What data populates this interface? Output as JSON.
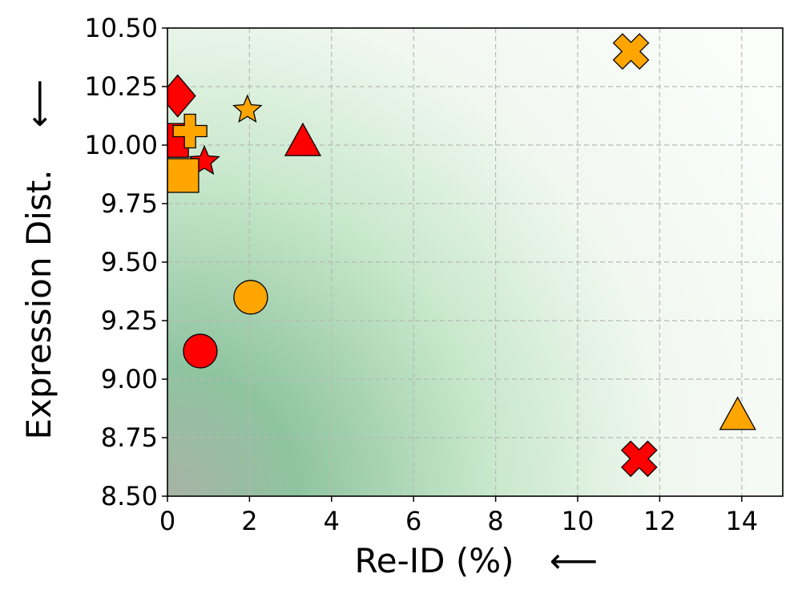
{
  "chart_data": {
    "type": "scatter",
    "xlabel": "Re-ID (%)",
    "ylabel": "Expression Dist.",
    "xlabel_arrow": "⟵",
    "ylabel_arrow": "⟵",
    "xlim": [
      0,
      15
    ],
    "ylim": [
      8.5,
      10.5
    ],
    "xticks": [
      0,
      2,
      4,
      6,
      8,
      10,
      12,
      14
    ],
    "xtick_labels": [
      "0",
      "2",
      "4",
      "6",
      "8",
      "10",
      "12",
      "14"
    ],
    "yticks": [
      8.5,
      8.75,
      9.0,
      9.25,
      9.5,
      9.75,
      10.0,
      10.25,
      10.5
    ],
    "ytick_labels": [
      "8.50",
      "8.75",
      "9.00",
      "9.25",
      "9.50",
      "9.75",
      "10.00",
      "10.25",
      "10.50"
    ],
    "grid": true,
    "background": "green gradient, darkest near the origin (0, 8.5), fading toward top-right",
    "colors": {
      "red": "#ff0000",
      "orange": "#ffa500",
      "edge": "#000000",
      "background_dark": "#a7b3a6",
      "background_green": "#8fcb9f"
    },
    "points": [
      {
        "x": 0.25,
        "y": 10.21,
        "marker": "diamond",
        "color": "red"
      },
      {
        "x": 0.1,
        "y": 10.02,
        "marker": "square",
        "color": "red"
      },
      {
        "x": 0.55,
        "y": 10.06,
        "marker": "plus",
        "color": "orange"
      },
      {
        "x": 0.9,
        "y": 9.93,
        "marker": "star",
        "color": "red"
      },
      {
        "x": 0.35,
        "y": 9.87,
        "marker": "square",
        "color": "orange"
      },
      {
        "x": 1.95,
        "y": 10.15,
        "marker": "star",
        "color": "orange"
      },
      {
        "x": 3.3,
        "y": 10.01,
        "marker": "triangle",
        "color": "red"
      },
      {
        "x": 11.3,
        "y": 10.4,
        "marker": "x",
        "color": "orange"
      },
      {
        "x": 2.03,
        "y": 9.35,
        "marker": "circle",
        "color": "orange"
      },
      {
        "x": 0.8,
        "y": 9.12,
        "marker": "circle",
        "color": "red"
      },
      {
        "x": 13.9,
        "y": 8.84,
        "marker": "triangle",
        "color": "orange"
      },
      {
        "x": 11.5,
        "y": 8.66,
        "marker": "x",
        "color": "red"
      }
    ]
  }
}
